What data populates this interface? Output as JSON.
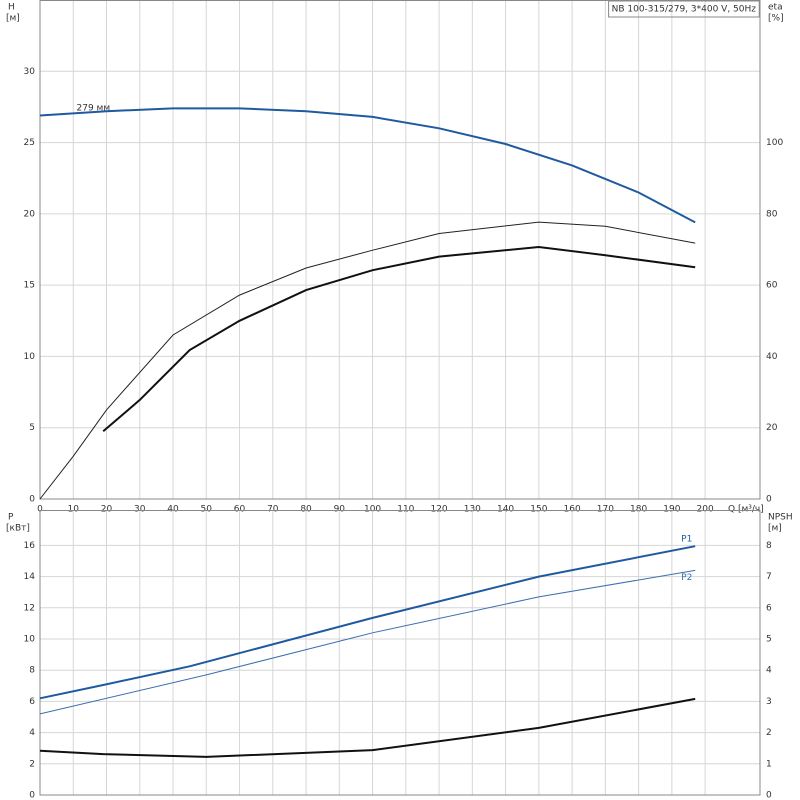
{
  "chart_data": [
    {
      "type": "line",
      "title": "NB 100-315/279, 3*400 V, 50Hz",
      "ylabel": "H",
      "yunit": "[м]",
      "y2label": "eta",
      "y2unit": "[%]",
      "xlabel": "Q [м³/ч]",
      "annotation": "279 мм",
      "xlim": [
        0,
        216.5
      ],
      "xticks": [
        0,
        10,
        20,
        30,
        40,
        50,
        60,
        70,
        80,
        90,
        100,
        110,
        120,
        130,
        140,
        150,
        160,
        170,
        180,
        190,
        200
      ],
      "ylim": [
        0,
        35
      ],
      "yticks": [
        0,
        5,
        10,
        15,
        20,
        25,
        30
      ],
      "y2lim": [
        0,
        140
      ],
      "y2ticks": [
        0,
        20,
        40,
        60,
        80,
        100
      ],
      "grid": true,
      "series": [
        {
          "color": "#1f5aa0",
          "linewidth": 2,
          "x": [
            0,
            20,
            40,
            60,
            80,
            100,
            120,
            140,
            160,
            180,
            197
          ],
          "values": [
            26.9,
            27.2,
            27.4,
            27.4,
            27.2,
            26.8,
            26.0,
            24.9,
            23.4,
            21.5,
            19.4
          ]
        },
        {
          "color": "#222222",
          "linewidth": 1,
          "axis": "y2",
          "x": [
            0,
            10,
            20,
            40,
            60,
            80,
            100,
            120,
            150,
            170,
            197
          ],
          "values": [
            0,
            12,
            25,
            46,
            57.2,
            64.8,
            69.8,
            74.5,
            77.7,
            76.5,
            71.8
          ]
        },
        {
          "color": "#111111",
          "linewidth": 2,
          "axis": "y2",
          "x": [
            19,
            30,
            45,
            60,
            80,
            100,
            120,
            150,
            170,
            197
          ],
          "values": [
            19,
            27.8,
            41.8,
            50,
            58.6,
            64.2,
            68,
            70.7,
            68.4,
            65
          ]
        }
      ]
    },
    {
      "type": "line",
      "ylabel": "P",
      "yunit": "[кВт]",
      "y2label": "NPSH",
      "y2unit": "[м]",
      "xlim": [
        0,
        216.5
      ],
      "xticks": [
        0,
        10,
        20,
        30,
        40,
        50,
        60,
        70,
        80,
        90,
        100,
        110,
        120,
        130,
        140,
        150,
        160,
        170,
        180,
        190,
        200
      ],
      "ylim": [
        0,
        18.27
      ],
      "yticks": [
        0,
        2,
        4,
        6,
        8,
        10,
        12,
        14,
        16
      ],
      "y2lim": [
        0,
        9.135
      ],
      "y2ticks": [
        0,
        1,
        2,
        3,
        4,
        5,
        6,
        7,
        8
      ],
      "grid": true,
      "series": [
        {
          "name": "P1",
          "color": "#1f5aa0",
          "linewidth": 2,
          "x": [
            0,
            19,
            45,
            100,
            150,
            197
          ],
          "values": [
            6.2,
            7.05,
            8.25,
            11.35,
            14.0,
            15.95
          ]
        },
        {
          "name": "P2",
          "color": "#3a6fb0",
          "linewidth": 1,
          "x": [
            0,
            50,
            100,
            150,
            197
          ],
          "values": [
            5.2,
            7.7,
            10.4,
            12.7,
            14.4
          ]
        },
        {
          "color": "#111111",
          "linewidth": 2,
          "axis": "y2",
          "x": [
            0,
            19,
            50,
            100,
            150,
            197
          ],
          "values": [
            1.42,
            1.31,
            1.22,
            1.44,
            2.15,
            3.08
          ]
        }
      ]
    }
  ]
}
